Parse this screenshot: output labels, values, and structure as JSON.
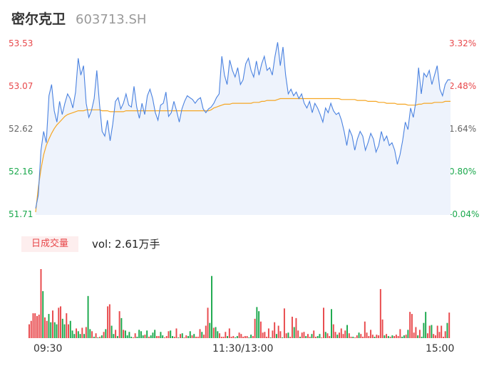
{
  "header": {
    "name": "密尔克卫",
    "code": "603713.SH"
  },
  "y_axis_left": [
    "53.53",
    "53.07",
    "52.62",
    "52.16",
    "51.71"
  ],
  "y_axis_right": [
    "3.32%",
    "2.48%",
    "1.64%",
    "0.80%",
    "-0.04%"
  ],
  "volume": {
    "badge": "日成交量",
    "label": "vol: 2.61万手"
  },
  "time_axis": [
    "09:30",
    "11:30/13:00",
    "15:00"
  ],
  "colors": {
    "up": "#e8484b",
    "down": "#1aa84c",
    "price_line": "#4a82e0",
    "avg_line": "#f5a623",
    "fill": "#eef3fc"
  },
  "chart_data": [
    {
      "type": "line",
      "series": [
        {
          "values": [
            51.78,
            51.92,
            52.4,
            52.6,
            52.48,
            52.98,
            53.1,
            52.82,
            52.7,
            52.92,
            52.78,
            52.9,
            53.0,
            52.95,
            52.85,
            53.02,
            53.38,
            53.2,
            53.3,
            52.9,
            52.75,
            52.82,
            52.95,
            53.25,
            52.9,
            52.6,
            52.55,
            52.72,
            52.5,
            52.68,
            52.92,
            52.96,
            52.84,
            52.9,
            53.0,
            52.88,
            52.86,
            53.08,
            52.86,
            52.74,
            52.9,
            52.78,
            52.98,
            53.05,
            52.95,
            52.8,
            52.72,
            52.88,
            52.9,
            53.02,
            52.76,
            52.8,
            52.92,
            52.82,
            52.7,
            52.84,
            52.92,
            52.98,
            52.96,
            52.94,
            52.9,
            52.94,
            52.96,
            52.84,
            52.8,
            52.84,
            52.86,
            52.9,
            52.96,
            53.0,
            53.4,
            53.2,
            53.1,
            53.36,
            53.25,
            53.18,
            53.28,
            53.1,
            53.15,
            53.32,
            53.38,
            53.25,
            53.18,
            53.35,
            53.2,
            53.32,
            53.4,
            53.25,
            53.28,
            53.2,
            53.4,
            53.55,
            53.3,
            53.5,
            53.2,
            53.0,
            53.05,
            52.98,
            53.02,
            52.95,
            53.0,
            52.9,
            52.85,
            52.92,
            52.8,
            52.9,
            52.85,
            52.78,
            52.7,
            52.85,
            52.8,
            52.9,
            52.82,
            52.78,
            52.8,
            52.72,
            52.6,
            52.45,
            52.62,
            52.55,
            52.4,
            52.52,
            52.6,
            52.55,
            52.4,
            52.48,
            52.58,
            52.52,
            52.38,
            52.45,
            52.6,
            52.5,
            52.55,
            52.45,
            52.48,
            52.4,
            52.25,
            52.35,
            52.5,
            52.7,
            52.62,
            52.85,
            52.75,
            52.92,
            53.28,
            53.0,
            53.22,
            53.18,
            53.25,
            53.1,
            53.2,
            53.3,
            53.05,
            52.98,
            53.1,
            53.15,
            53.15
          ]
        },
        {
          "values": [
            51.74,
            52.0,
            52.2,
            52.35,
            52.45,
            52.52,
            52.58,
            52.63,
            52.67,
            52.7,
            52.73,
            52.76,
            52.78,
            52.79,
            52.8,
            52.81,
            52.82,
            52.82,
            52.82,
            52.83,
            52.83,
            52.83,
            52.83,
            52.83,
            52.83,
            52.82,
            52.82,
            52.82,
            52.81,
            52.81,
            52.81,
            52.81,
            52.81,
            52.81,
            52.82,
            52.82,
            52.82,
            52.82,
            52.82,
            52.82,
            52.82,
            52.82,
            52.82,
            52.82,
            52.82,
            52.82,
            52.82,
            52.82,
            52.82,
            52.82,
            52.82,
            52.82,
            52.82,
            52.82,
            52.82,
            52.82,
            52.82,
            52.82,
            52.82,
            52.82,
            52.82,
            52.82,
            52.82,
            52.82,
            52.82,
            52.82,
            52.83,
            52.85,
            52.86,
            52.87,
            52.88,
            52.89,
            52.89,
            52.89,
            52.9,
            52.9,
            52.9,
            52.9,
            52.9,
            52.9,
            52.9,
            52.9,
            52.91,
            52.91,
            52.91,
            52.92,
            52.92,
            52.93,
            52.93,
            52.93,
            52.93,
            52.94,
            52.95,
            52.95,
            52.95,
            52.95,
            52.95,
            52.95,
            52.95,
            52.95,
            52.95,
            52.95,
            52.95,
            52.95,
            52.95,
            52.95,
            52.95,
            52.95,
            52.95,
            52.95,
            52.95,
            52.95,
            52.95,
            52.95,
            52.95,
            52.94,
            52.94,
            52.94,
            52.94,
            52.94,
            52.94,
            52.93,
            52.93,
            52.93,
            52.93,
            52.92,
            52.92,
            52.92,
            52.92,
            52.91,
            52.91,
            52.91,
            52.9,
            52.9,
            52.9,
            52.9,
            52.89,
            52.89,
            52.89,
            52.89,
            52.88,
            52.88,
            52.88,
            52.88,
            52.89,
            52.89,
            52.9,
            52.9,
            52.9,
            52.9,
            52.91,
            52.91,
            52.91,
            52.91,
            52.92,
            52.92,
            52.92
          ]
        }
      ],
      "ylim": [
        51.71,
        53.53
      ],
      "y_percent_range": [
        "-0.04%",
        "3.32%"
      ]
    },
    {
      "type": "bar",
      "values": [
        20,
        25,
        36,
        36,
        32,
        34,
        100,
        68,
        30,
        25,
        35,
        23,
        40,
        23,
        20,
        44,
        46,
        28,
        20,
        36,
        20,
        25,
        11,
        6,
        14,
        10,
        6,
        15,
        6,
        16,
        61,
        13,
        10,
        2,
        7,
        1,
        2,
        4,
        9,
        13,
        46,
        49,
        18,
        6,
        12,
        3,
        39,
        29,
        12,
        11,
        4,
        9,
        2,
        1,
        7,
        2,
        12,
        10,
        4,
        5,
        11,
        2,
        4,
        8,
        12,
        3,
        3,
        9,
        4,
        1,
        3,
        10,
        11,
        3,
        2,
        14,
        1,
        6,
        7,
        1,
        4,
        3,
        10,
        4,
        6,
        2,
        2,
        13,
        9,
        5,
        18,
        44,
        22,
        90,
        15,
        16,
        10,
        7,
        2,
        2,
        9,
        3,
        14,
        2,
        3,
        1,
        3,
        8,
        6,
        2,
        3,
        3,
        1,
        5,
        3,
        28,
        45,
        39,
        24,
        8,
        9,
        2,
        14,
        1,
        11,
        23,
        6,
        18,
        10,
        1,
        43,
        7,
        8,
        2,
        31,
        16,
        29,
        11,
        2,
        8,
        9,
        3,
        6,
        2,
        6,
        11,
        2,
        3,
        6,
        1,
        44,
        9,
        7,
        3,
        42,
        20,
        9,
        5,
        8,
        14,
        6,
        11,
        19,
        7,
        2,
        2,
        1,
        4,
        8,
        6,
        2,
        24,
        8,
        3,
        12,
        5,
        2,
        5,
        4,
        71,
        27,
        4,
        6,
        3,
        2,
        4,
        3,
        5,
        3,
        13,
        2,
        4,
        5,
        12,
        38,
        35,
        8,
        16,
        4,
        12,
        2,
        22,
        38,
        7,
        18,
        19,
        6,
        4,
        18,
        9,
        18,
        2,
        10,
        22,
        37
      ],
      "colors": [
        "r",
        "r",
        "r",
        "r",
        "r",
        "r",
        "r",
        "g",
        "r",
        "r",
        "g",
        "g",
        "r",
        "g",
        "g",
        "r",
        "r",
        "g",
        "g",
        "r",
        "r",
        "g",
        "g",
        "g",
        "r",
        "g",
        "g",
        "r",
        "g",
        "r",
        "g",
        "g",
        "r",
        "g",
        "r",
        "g",
        "r",
        "g",
        "r",
        "g",
        "r",
        "r",
        "g",
        "g",
        "r",
        "g",
        "r",
        "g",
        "r",
        "g",
        "g",
        "g",
        "g",
        "r",
        "r",
        "g",
        "g",
        "g",
        "g",
        "r",
        "g",
        "r",
        "g",
        "g",
        "g",
        "r",
        "r",
        "g",
        "g",
        "r",
        "r",
        "r",
        "g",
        "g",
        "r",
        "r",
        "g",
        "r",
        "g",
        "r",
        "r",
        "g",
        "g",
        "r",
        "g",
        "r",
        "r",
        "r",
        "g",
        "r",
        "r",
        "r",
        "g",
        "g",
        "r",
        "g",
        "g",
        "r",
        "r",
        "r",
        "r",
        "g",
        "r",
        "r",
        "r",
        "g",
        "g",
        "r",
        "r",
        "r",
        "r",
        "r",
        "g",
        "g",
        "r",
        "r",
        "g",
        "g",
        "r",
        "r",
        "r",
        "r",
        "r",
        "g",
        "r",
        "r",
        "g",
        "r",
        "r",
        "g",
        "r",
        "r",
        "g",
        "r",
        "r",
        "g",
        "r",
        "r",
        "g",
        "r",
        "r",
        "g",
        "r",
        "r",
        "g",
        "r",
        "r",
        "g",
        "g",
        "r",
        "r",
        "g",
        "r",
        "r",
        "g",
        "r",
        "r",
        "g",
        "r",
        "r",
        "r",
        "r",
        "g",
        "r",
        "r",
        "g",
        "r",
        "r",
        "g",
        "r",
        "r",
        "r",
        "r",
        "r",
        "r",
        "r",
        "g",
        "r",
        "r",
        "r",
        "r",
        "g",
        "r",
        "g",
        "r",
        "g",
        "r",
        "r",
        "r",
        "r",
        "g",
        "g",
        "r",
        "g",
        "r",
        "r",
        "r",
        "r",
        "g",
        "r",
        "g",
        "g",
        "g",
        "r",
        "r",
        "g",
        "r",
        "r",
        "r",
        "r",
        "r",
        "r",
        "r",
        "g",
        "r",
        "r",
        "g",
        "r",
        "r",
        "g",
        "r",
        "r",
        "r",
        "r",
        "r"
      ],
      "volume_unit_label": "vol: 2.61万手"
    }
  ]
}
